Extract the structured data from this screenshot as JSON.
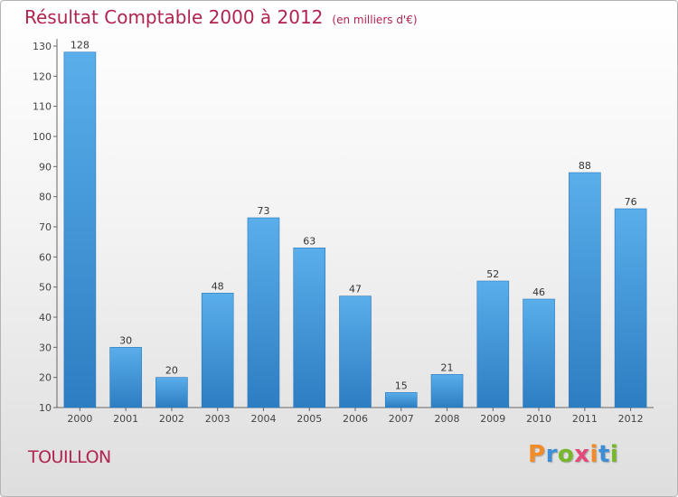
{
  "chart_data": {
    "type": "bar",
    "title": "Résultat Comptable 2000 à 2012",
    "subtitle": "(en milliers d'€)",
    "categories": [
      "2000",
      "2001",
      "2002",
      "2003",
      "2004",
      "2005",
      "2006",
      "2007",
      "2008",
      "2009",
      "2010",
      "2011",
      "2012"
    ],
    "values": [
      128,
      30,
      20,
      48,
      73,
      63,
      47,
      15,
      21,
      52,
      46,
      88,
      76
    ],
    "yticks": [
      10,
      20,
      30,
      40,
      50,
      60,
      70,
      80,
      90,
      100,
      110,
      120,
      130
    ],
    "ylim": [
      10,
      130
    ],
    "xlabel": "",
    "ylabel": "",
    "grid": false,
    "bar_color": "#4a9fe0",
    "bar_color_dark": "#2f7fc4"
  },
  "footer": {
    "place": "TOUILLON",
    "logo": [
      "P",
      "r",
      "o",
      "x",
      "i",
      "t",
      "i"
    ]
  },
  "colors": {
    "title": "#b0244f",
    "axis": "#555555"
  }
}
